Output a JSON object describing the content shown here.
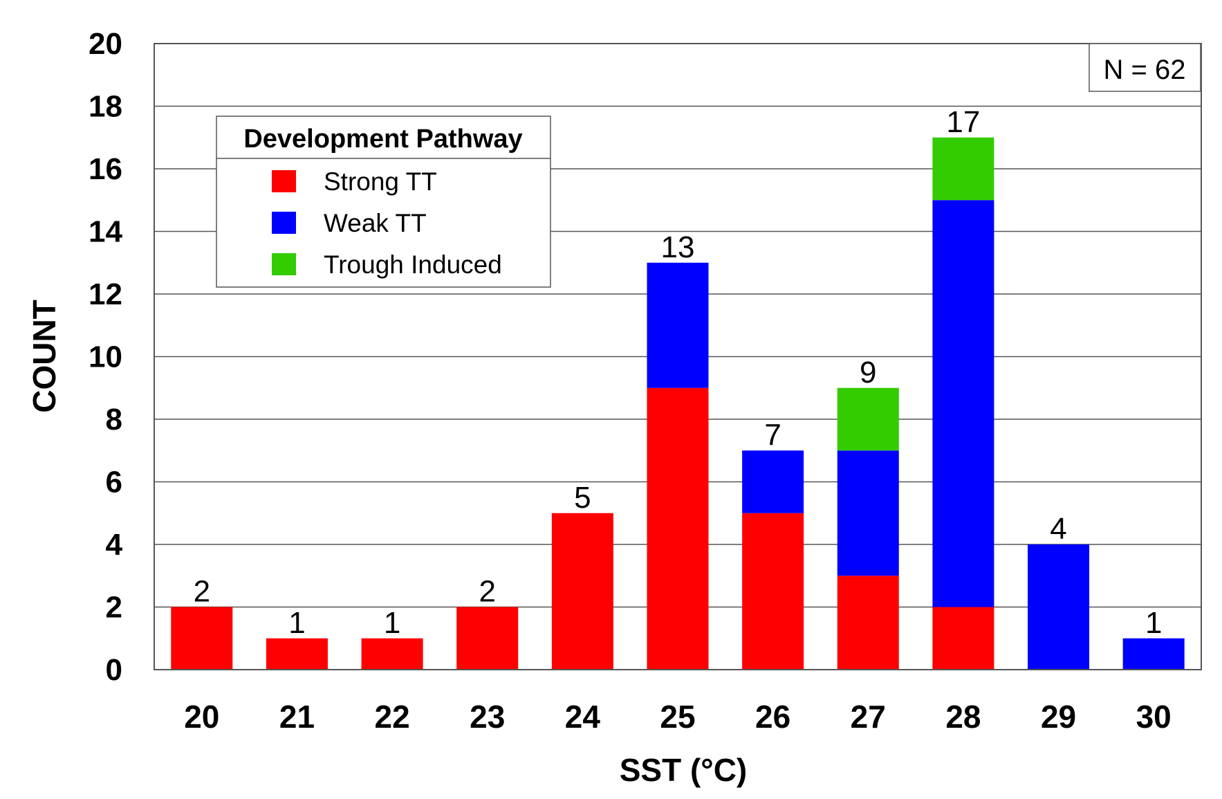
{
  "chart_data": {
    "type": "bar",
    "stacked": true,
    "categories": [
      "20",
      "21",
      "22",
      "23",
      "24",
      "25",
      "26",
      "27",
      "28",
      "29",
      "30"
    ],
    "series": [
      {
        "name": "Strong TT",
        "color": "#ff0000",
        "values": [
          2,
          1,
          1,
          2,
          5,
          9,
          5,
          3,
          2,
          0,
          0
        ]
      },
      {
        "name": "Weak TT",
        "color": "#0000ff",
        "values": [
          0,
          0,
          0,
          0,
          0,
          4,
          2,
          4,
          13,
          4,
          1
        ]
      },
      {
        "name": "Trough Induced",
        "color": "#33cc00",
        "values": [
          0,
          0,
          0,
          0,
          0,
          0,
          0,
          2,
          2,
          0,
          0
        ]
      }
    ],
    "totals": [
      "2",
      "1",
      "1",
      "2",
      "5",
      "13",
      "7",
      "9",
      "17",
      "4",
      "1"
    ],
    "xlabel": "SST (°C)",
    "ylabel": "COUNT",
    "ylim": [
      0,
      20
    ],
    "yticks": [
      "0",
      "2",
      "4",
      "6",
      "8",
      "10",
      "12",
      "14",
      "16",
      "18",
      "20"
    ],
    "grid": true,
    "legend": {
      "title": "Development Pathway",
      "position": "top-left"
    },
    "annotation": "N = 62"
  }
}
